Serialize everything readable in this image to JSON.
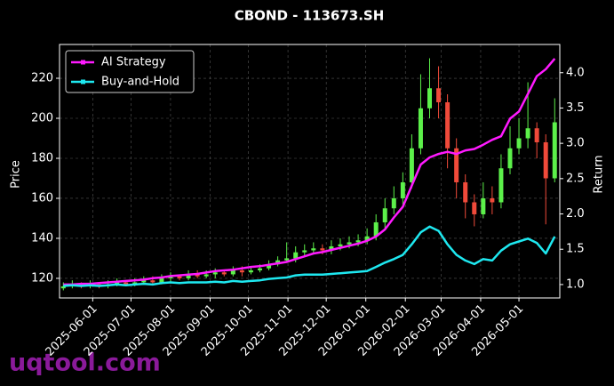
{
  "chart_data": {
    "type": "candlestick",
    "title": "CBOND - 113673.SH",
    "ylabel": "Price",
    "y2label": "Return",
    "watermark": "uqtool.com",
    "legend": "upper left",
    "grid": true,
    "up_color": "#5cf04a",
    "down_color": "#f04a3a",
    "xlim": [
      "2025-05-06",
      "2026-06-02"
    ],
    "xticks": [
      "2025-06-01",
      "2025-07-01",
      "2025-08-01",
      "2025-09-01",
      "2025-10-01",
      "2025-11-01",
      "2025-12-01",
      "2026-01-01",
      "2026-02-01",
      "2026-03-01",
      "2026-04-01",
      "2026-05-01"
    ],
    "ylim": [
      110.2,
      236.9
    ],
    "yticks": [
      120,
      140,
      160,
      180,
      200,
      220
    ],
    "y2lim": [
      0.81,
      4.4
    ],
    "y2ticks": [
      {
        "value": 1,
        "label": "1.0"
      },
      {
        "value": 1.5,
        "label": "1.5"
      },
      {
        "value": 2,
        "label": "2.0"
      },
      {
        "value": 2.5,
        "label": "2.5"
      },
      {
        "value": 3,
        "label": "3.0"
      },
      {
        "value": 3.5,
        "label": "3.5"
      },
      {
        "value": 4,
        "label": "4.0"
      }
    ],
    "x": [
      "2025-05-09",
      "2025-05-16",
      "2025-05-23",
      "2025-05-30",
      "2025-06-06",
      "2025-06-13",
      "2025-06-20",
      "2025-06-27",
      "2025-07-04",
      "2025-07-11",
      "2025-07-18",
      "2025-07-25",
      "2025-08-01",
      "2025-08-08",
      "2025-08-15",
      "2025-08-22",
      "2025-08-29",
      "2025-09-05",
      "2025-09-12",
      "2025-09-19",
      "2025-09-26",
      "2025-10-03",
      "2025-10-10",
      "2025-10-17",
      "2025-10-24",
      "2025-10-31",
      "2025-11-07",
      "2025-11-14",
      "2025-11-21",
      "2025-11-28",
      "2025-12-05",
      "2025-12-12",
      "2025-12-19",
      "2025-12-26",
      "2026-01-02",
      "2026-01-09",
      "2026-01-16",
      "2026-01-23",
      "2026-01-30",
      "2026-02-06",
      "2026-02-13",
      "2026-02-20",
      "2026-02-27",
      "2026-03-06",
      "2026-03-13",
      "2026-03-20",
      "2026-03-27",
      "2026-04-03",
      "2026-04-10",
      "2026-04-17",
      "2026-04-24",
      "2026-05-01",
      "2026-05-08",
      "2026-05-15",
      "2026-05-22",
      "2026-05-29"
    ],
    "candles": {
      "open": [
        115,
        116,
        117,
        116,
        117,
        116,
        117,
        118,
        117,
        118,
        119,
        118,
        120,
        121,
        120,
        122,
        121,
        122,
        123,
        122,
        124,
        123,
        124,
        125,
        127,
        129,
        130,
        133,
        134,
        135,
        134,
        136,
        137,
        138,
        139,
        141,
        148,
        155,
        160,
        168,
        185,
        205,
        215,
        208,
        185,
        168,
        158,
        152,
        160,
        158,
        175,
        185,
        190,
        195,
        188,
        170
      ],
      "high": [
        118,
        119,
        118,
        119,
        118,
        119,
        120,
        119,
        120,
        121,
        121,
        122,
        123,
        122,
        124,
        124,
        124,
        125,
        124,
        126,
        126,
        126,
        127,
        129,
        131,
        138,
        136,
        137,
        138,
        137,
        139,
        140,
        141,
        142,
        145,
        152,
        160,
        166,
        173,
        192,
        222,
        230,
        226,
        212,
        190,
        172,
        162,
        168,
        166,
        182,
        196,
        200,
        218,
        198,
        192,
        210
      ],
      "low": [
        114,
        115,
        115,
        115,
        115,
        115,
        116,
        116,
        116,
        117,
        117,
        117,
        118,
        119,
        119,
        120,
        120,
        120,
        121,
        121,
        121,
        122,
        123,
        124,
        126,
        128,
        128,
        131,
        132,
        132,
        132,
        134,
        135,
        136,
        137,
        139,
        145,
        152,
        157,
        165,
        182,
        200,
        200,
        175,
        160,
        150,
        146,
        150,
        152,
        155,
        172,
        182,
        185,
        180,
        147,
        168
      ],
      "close": [
        116,
        117,
        116,
        117,
        116,
        117,
        118,
        117,
        118,
        119,
        118,
        120,
        121,
        120,
        122,
        121,
        122,
        123,
        122,
        124,
        123,
        124,
        125,
        127,
        129,
        130,
        133,
        134,
        135,
        134,
        136,
        137,
        138,
        139,
        141,
        148,
        155,
        160,
        168,
        185,
        205,
        215,
        208,
        185,
        168,
        158,
        152,
        160,
        158,
        175,
        185,
        190,
        195,
        188,
        170,
        198
      ]
    },
    "series": [
      {
        "name": "AI Strategy",
        "color": "#ff1aff",
        "axis": "y2",
        "values": [
          1.0,
          1.0,
          1.01,
          1.01,
          1.02,
          1.03,
          1.04,
          1.05,
          1.06,
          1.07,
          1.09,
          1.1,
          1.12,
          1.13,
          1.14,
          1.15,
          1.17,
          1.19,
          1.2,
          1.21,
          1.23,
          1.25,
          1.26,
          1.28,
          1.3,
          1.32,
          1.36,
          1.4,
          1.44,
          1.46,
          1.49,
          1.52,
          1.55,
          1.58,
          1.62,
          1.68,
          1.78,
          1.95,
          2.1,
          2.4,
          2.7,
          2.8,
          2.85,
          2.88,
          2.85,
          2.9,
          2.92,
          2.98,
          3.05,
          3.1,
          3.35,
          3.45,
          3.7,
          3.95,
          4.05,
          4.2
        ]
      },
      {
        "name": "Buy-and-Hold",
        "color": "#1ee8f0",
        "axis": "y2",
        "values": [
          0.98,
          0.99,
          0.98,
          0.99,
          0.98,
          0.99,
          1.0,
          0.99,
          1.0,
          1.01,
          1.0,
          1.02,
          1.03,
          1.02,
          1.03,
          1.03,
          1.03,
          1.04,
          1.03,
          1.05,
          1.04,
          1.05,
          1.06,
          1.08,
          1.09,
          1.1,
          1.13,
          1.14,
          1.14,
          1.14,
          1.15,
          1.16,
          1.17,
          1.18,
          1.19,
          1.25,
          1.31,
          1.36,
          1.42,
          1.57,
          1.74,
          1.82,
          1.76,
          1.57,
          1.42,
          1.34,
          1.29,
          1.36,
          1.34,
          1.48,
          1.57,
          1.61,
          1.65,
          1.59,
          1.44,
          1.68
        ]
      }
    ]
  }
}
